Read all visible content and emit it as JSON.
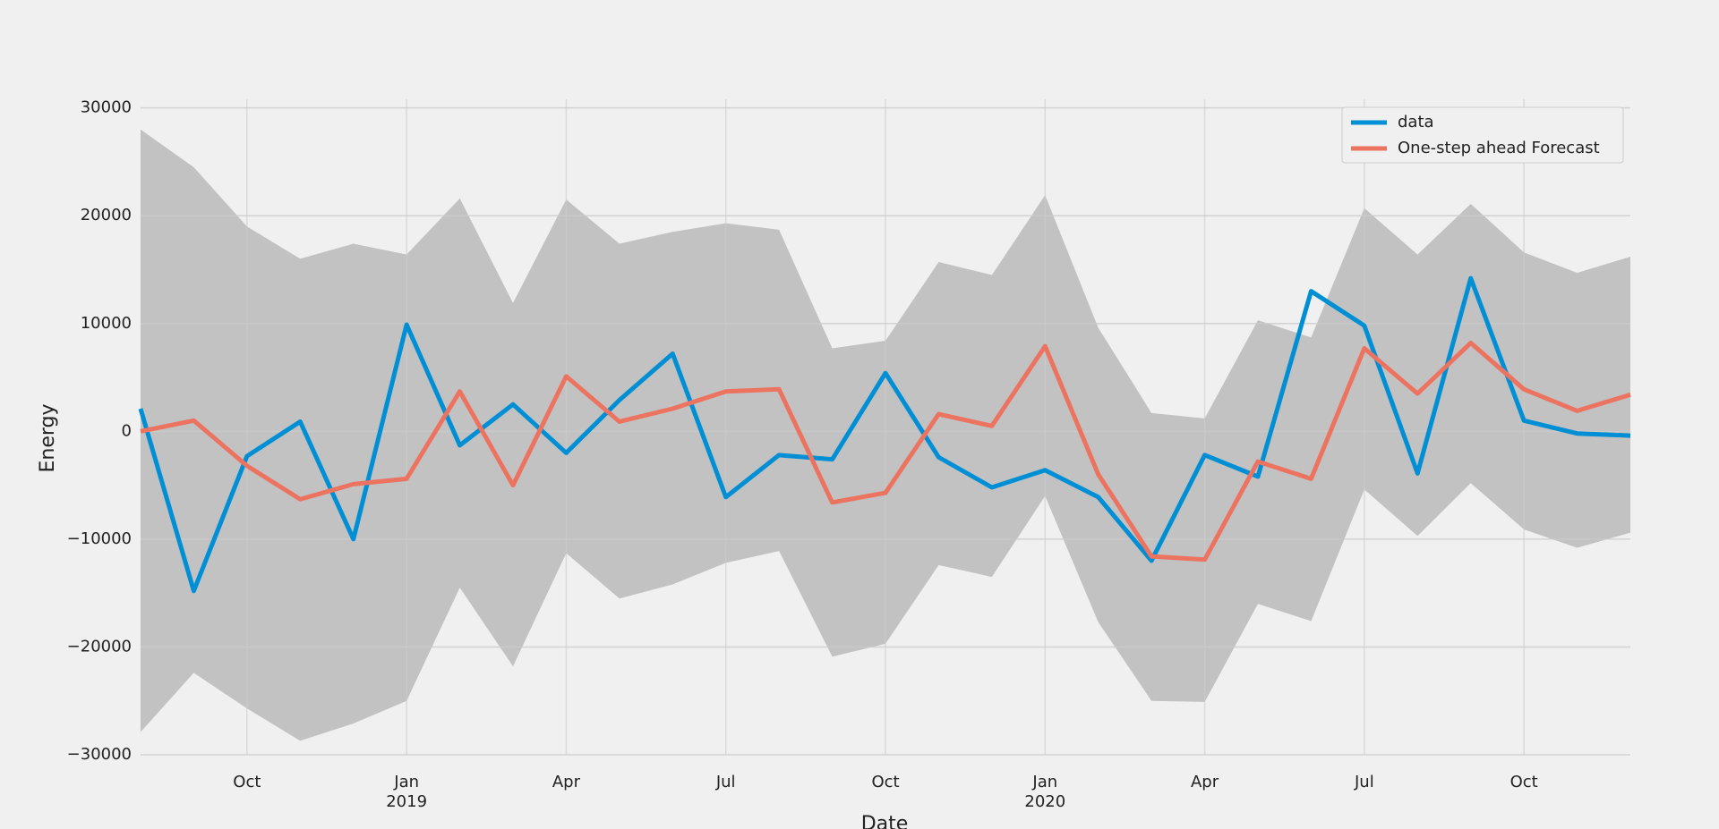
{
  "chart_data": {
    "type": "line",
    "xlabel": "Date",
    "ylabel": "Energy",
    "x": [
      "2018-08",
      "2018-09",
      "2018-10",
      "2018-11",
      "2018-12",
      "2019-01",
      "2019-02",
      "2019-03",
      "2019-04",
      "2019-05",
      "2019-06",
      "2019-07",
      "2019-08",
      "2019-09",
      "2019-10",
      "2019-11",
      "2019-12",
      "2020-01",
      "2020-02",
      "2020-03",
      "2020-04",
      "2020-05",
      "2020-06",
      "2020-07",
      "2020-08",
      "2020-09",
      "2020-10",
      "2020-11",
      "2020-12"
    ],
    "series": [
      {
        "name": "data",
        "color": "#008fd5",
        "values": [
          2100,
          -14800,
          -2300,
          900,
          -10000,
          9900,
          -1300,
          2500,
          -2000,
          2900,
          7200,
          -6100,
          -2200,
          -2600,
          5400,
          -2400,
          -5200,
          -3600,
          -6100,
          -12000,
          -2200,
          -4200,
          13000,
          9800,
          -3900,
          14200,
          1000,
          -200,
          -400
        ]
      },
      {
        "name": "One-step ahead Forecast",
        "color": "#ec7360",
        "values": [
          0,
          1000,
          -3200,
          -6300,
          -4900,
          -4400,
          3700,
          -5000,
          5100,
          900,
          2100,
          3700,
          3900,
          -6600,
          -5700,
          1600,
          500,
          7900,
          -4000,
          -11600,
          -11900,
          -2800,
          -4400,
          7700,
          3500,
          8200,
          3900,
          1900,
          3400
        ]
      }
    ],
    "interval": {
      "color": "#bdbdbd",
      "upper": [
        28000,
        24500,
        19000,
        16000,
        17400,
        16400,
        21600,
        11900,
        21500,
        17400,
        18500,
        19300,
        18700,
        7700,
        8400,
        15700,
        14500,
        21900,
        9600,
        1700,
        1200,
        10300,
        8700,
        20700,
        16400,
        21100,
        16600,
        14700,
        16200
      ],
      "lower": [
        -27900,
        -22400,
        -25700,
        -28700,
        -27100,
        -25000,
        -14500,
        -21800,
        -11300,
        -15500,
        -14200,
        -12200,
        -11100,
        -20900,
        -19700,
        -12400,
        -13500,
        -6000,
        -17700,
        -25000,
        -25100,
        -16000,
        -17600,
        -5400,
        -9700,
        -4800,
        -9100,
        -10800,
        -9400
      ]
    },
    "xlim": [
      "2018-08",
      "2020-12"
    ],
    "xticks": [
      {
        "value": "2018-10",
        "label": "Oct"
      },
      {
        "value": "2019-01",
        "label": "Jan\n2019"
      },
      {
        "value": "2019-04",
        "label": "Apr"
      },
      {
        "value": "2019-07",
        "label": "Jul"
      },
      {
        "value": "2019-10",
        "label": "Oct"
      },
      {
        "value": "2020-01",
        "label": "Jan\n2020"
      },
      {
        "value": "2020-04",
        "label": "Apr"
      },
      {
        "value": "2020-07",
        "label": "Jul"
      },
      {
        "value": "2020-10",
        "label": "Oct"
      }
    ],
    "ylim": [
      -30000,
      30800
    ],
    "yticks": [
      {
        "value": -30000,
        "label": "−30000"
      },
      {
        "value": -20000,
        "label": "−20000"
      },
      {
        "value": -10000,
        "label": "−10000"
      },
      0,
      10000,
      20000,
      30000
    ],
    "grid": true,
    "legend": "upper right"
  }
}
